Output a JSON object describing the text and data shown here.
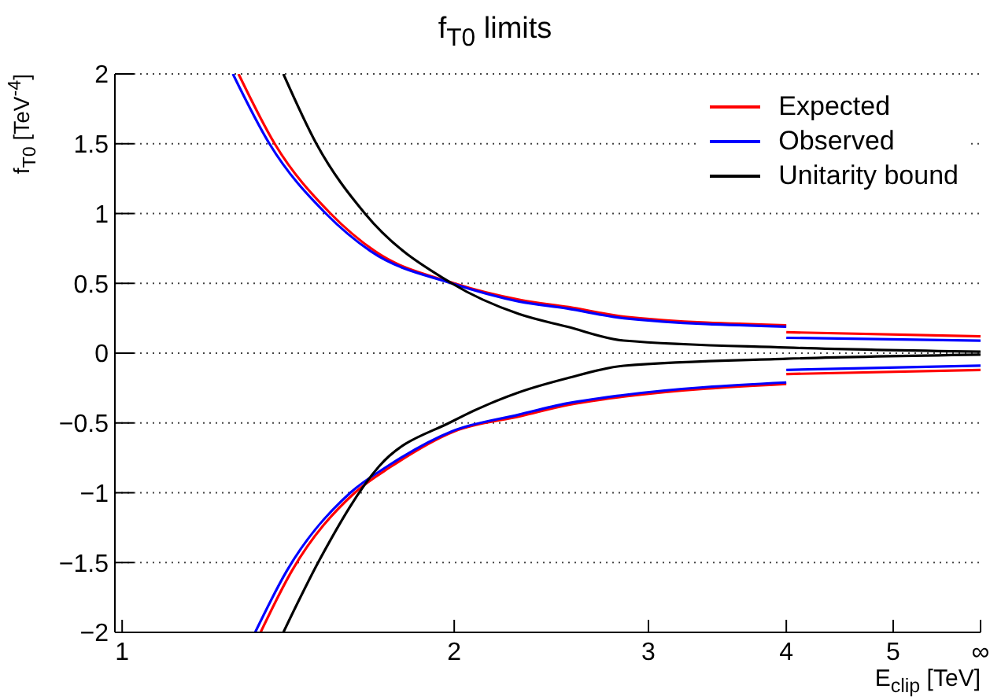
{
  "chart_data": {
    "type": "line",
    "title": "f$_{T0}$ limits",
    "xlabel": "E$_{clip}$ [TeV]",
    "ylabel": "f$_{T0}$ [TeV$^{-4}$]",
    "log": "x",
    "xlim": [
      0.985,
      6
    ],
    "xticks": [
      1,
      2,
      3,
      4,
      5,
      {
        "value": 6,
        "label": "∞"
      }
    ],
    "ylim": [
      -2,
      2
    ],
    "yticks": [
      -2,
      -1.5,
      -1,
      -0.5,
      0,
      0.5,
      1,
      1.5,
      2
    ],
    "grid": "y",
    "legend": "top right",
    "marker": "none",
    "series": [
      {
        "name": "Expected",
        "color": "#ff0000",
        "x": [
          1.275,
          1.375,
          1.545,
          1.695,
          2.0,
          2.3,
          2.54,
          2.86,
          4
        ],
        "values": [
          2,
          1.5,
          1.0,
          0.73,
          0.5,
          0.38,
          0.33,
          0.26,
          0.2
        ]
      },
      {
        "color": "#ff0000",
        "x": [
          1.335,
          1.425,
          1.625,
          1.755,
          2.0,
          2.3,
          2.54,
          2.86,
          4
        ],
        "values": [
          -2,
          -1.56,
          -1.0,
          -0.81,
          -0.56,
          -0.45,
          -0.37,
          -0.31,
          -0.22
        ]
      },
      {
        "color": "#ff0000",
        "x": [
          4,
          6
        ],
        "values": [
          0.15,
          0.12
        ]
      },
      {
        "color": "#ff0000",
        "x": [
          4,
          6
        ],
        "values": [
          -0.15,
          -0.12
        ]
      },
      {
        "name": "Observed",
        "color": "#0000ff",
        "x": [
          1.26,
          1.36,
          1.53,
          1.68,
          1.99,
          2.29,
          2.53,
          2.85,
          4
        ],
        "values": [
          2,
          1.5,
          1.0,
          0.73,
          0.5,
          0.37,
          0.32,
          0.25,
          0.19
        ]
      },
      {
        "color": "#0000ff",
        "x": [
          1.32,
          1.41,
          1.61,
          1.74,
          1.99,
          2.29,
          2.53,
          2.85,
          4
        ],
        "values": [
          -2,
          -1.56,
          -1.0,
          -0.81,
          -0.56,
          -0.44,
          -0.36,
          -0.3,
          -0.21
        ]
      },
      {
        "color": "#0000ff",
        "x": [
          4,
          6
        ],
        "values": [
          0.11,
          0.09
        ]
      },
      {
        "color": "#0000ff",
        "x": [
          4,
          6
        ],
        "values": [
          -0.12,
          -0.09
        ]
      },
      {
        "name": "Unitarity bound",
        "color": "#000000",
        "x": [
          1.4,
          1.5,
          1.66,
          1.99,
          2.29,
          2.53,
          2.85,
          4,
          6
        ],
        "values": [
          2,
          1.5,
          1.0,
          0.5,
          0.28,
          0.19,
          0.09,
          0.04,
          0.01
        ]
      },
      {
        "color": "#000000",
        "x": [
          1.4,
          1.51,
          1.71,
          1.99,
          2.29,
          2.53,
          2.85,
          4,
          6
        ],
        "values": [
          -2,
          -1.48,
          -0.81,
          -0.49,
          -0.28,
          -0.18,
          -0.09,
          -0.04,
          -0.01
        ]
      }
    ]
  }
}
